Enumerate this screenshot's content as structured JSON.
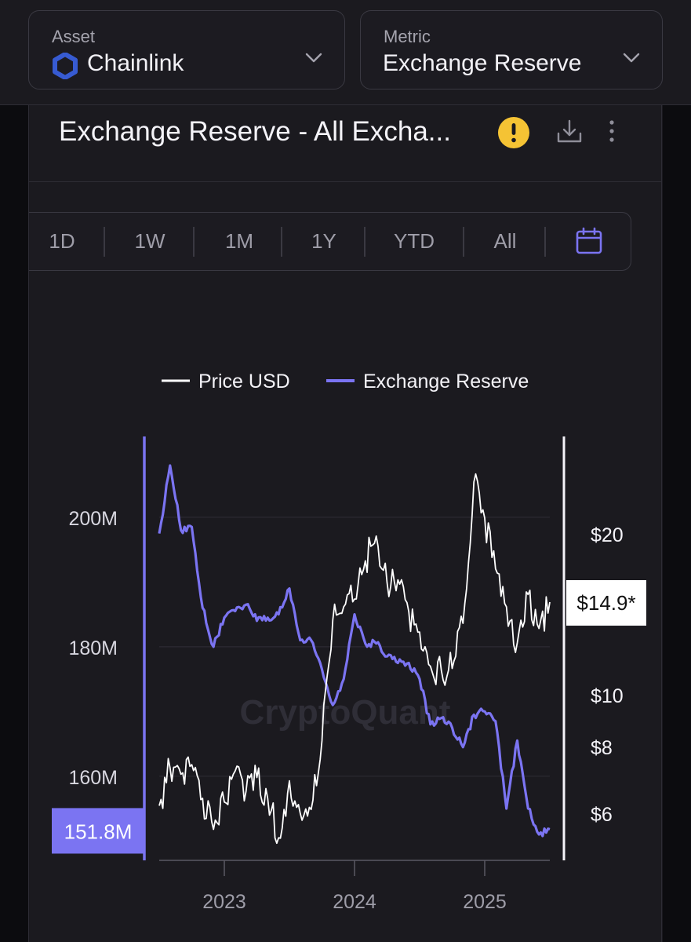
{
  "selectors": {
    "asset": {
      "caption": "Asset",
      "value": "Chainlink",
      "icon": "chainlink-hexagon-icon"
    },
    "metric": {
      "caption": "Metric",
      "value": "Exchange Reserve"
    }
  },
  "card": {
    "title": "Exchange Reserve - All Excha...",
    "icons": [
      "warning-icon",
      "download-icon",
      "more-vertical-icon"
    ]
  },
  "ranges": [
    "1D",
    "1W",
    "1M",
    "1Y",
    "YTD",
    "All"
  ],
  "colors": {
    "price": "#ffffff",
    "reserve": "#7b74f2",
    "warning": "#f5c334",
    "background": "#1b1a1f"
  },
  "chart_data": {
    "type": "line",
    "watermark": "CryptoQuant",
    "legend": {
      "placement": "top-center",
      "entries": [
        "Price USD",
        "Exchange Reserve"
      ]
    },
    "x_axis": {
      "ticks": [
        "2023",
        "2024",
        "2025"
      ],
      "range": [
        "2022-07",
        "2025-07"
      ]
    },
    "y_left": {
      "label": "Exchange Reserve",
      "ticks": [
        "200M",
        "180M",
        "160M"
      ],
      "tick_values": [
        200000000,
        180000000,
        160000000
      ],
      "range": [
        147000000,
        212000000
      ],
      "current_label": "151.8M"
    },
    "y_right": {
      "label": "Price USD",
      "scale": "log",
      "ticks": [
        "$20",
        "$10",
        "$8",
        "$6"
      ],
      "tick_values": [
        20,
        10,
        8,
        6
      ],
      "range": [
        4.9,
        30
      ],
      "current_label": "$14.9*"
    },
    "grid": true,
    "series": [
      {
        "name": "Price USD",
        "axis": "right",
        "x": [
          "2022-07",
          "2022-08",
          "2022-09",
          "2022-10",
          "2022-11",
          "2022-12",
          "2023-01",
          "2023-02",
          "2023-03",
          "2023-04",
          "2023-05",
          "2023-06",
          "2023-07",
          "2023-08",
          "2023-09",
          "2023-10",
          "2023-11",
          "2023-12",
          "2024-01",
          "2024-02",
          "2024-03",
          "2024-04",
          "2024-05",
          "2024-06",
          "2024-07",
          "2024-08",
          "2024-09",
          "2024-10",
          "2024-11",
          "2024-12",
          "2025-01",
          "2025-02",
          "2025-03",
          "2025-04",
          "2025-05",
          "2025-06",
          "2025-07"
        ],
        "values": [
          6.2,
          7.3,
          7.1,
          7.4,
          6.4,
          5.6,
          6.3,
          7.2,
          6.6,
          7.0,
          6.4,
          5.4,
          6.9,
          6.0,
          6.1,
          8.2,
          13.8,
          14.6,
          15.1,
          17.8,
          19.8,
          16.2,
          16.4,
          14.3,
          13.1,
          11.3,
          11.1,
          11.2,
          13.6,
          25.0,
          21.4,
          17.2,
          14.6,
          12.5,
          15.4,
          13.3,
          14.9
        ]
      },
      {
        "name": "Exchange Reserve",
        "axis": "left",
        "x": [
          "2022-07",
          "2022-08",
          "2022-09",
          "2022-10",
          "2022-11",
          "2022-12",
          "2023-01",
          "2023-02",
          "2023-03",
          "2023-04",
          "2023-05",
          "2023-06",
          "2023-07",
          "2023-08",
          "2023-09",
          "2023-10",
          "2023-11",
          "2023-12",
          "2024-01",
          "2024-02",
          "2024-03",
          "2024-04",
          "2024-05",
          "2024-06",
          "2024-07",
          "2024-08",
          "2024-09",
          "2024-10",
          "2024-11",
          "2024-12",
          "2025-01",
          "2025-02",
          "2025-03",
          "2025-04",
          "2025-05",
          "2025-06",
          "2025-07"
        ],
        "values": [
          197.5,
          208.0,
          198.0,
          198.5,
          186.0,
          180.0,
          184.5,
          185.5,
          186.5,
          184.0,
          184.5,
          185.0,
          189.0,
          181.0,
          181.0,
          176.5,
          171.0,
          175.0,
          185.0,
          180.5,
          180.5,
          178.5,
          177.5,
          177.5,
          175.0,
          168.0,
          169.0,
          167.5,
          164.5,
          169.5,
          170.0,
          168.5,
          155.0,
          165.5,
          155.0,
          151.0,
          151.8
        ]
      }
    ]
  }
}
